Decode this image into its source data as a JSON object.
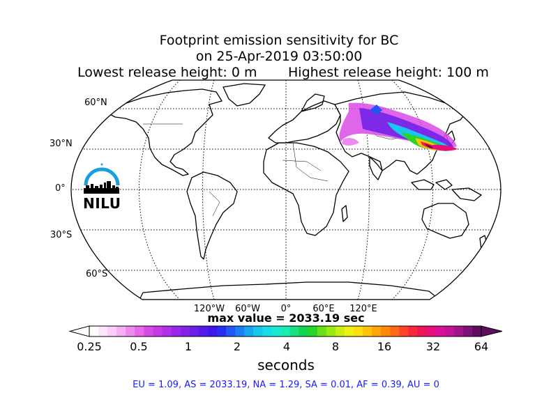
{
  "title": {
    "line1": "Footprint emission sensitivity for BC",
    "line2": "on 25-Apr-2019 03:50:00",
    "left": "Lowest release height: 0 m",
    "right": "Highest release height: 100 m"
  },
  "lat_labels": [
    "60°N",
    "30°N",
    "0°",
    "30°S",
    "60°S"
  ],
  "lon_labels": [
    "120°W",
    "60°W",
    "0°",
    "60°E",
    "120°E"
  ],
  "max_value": "max value = 2033.19 sec",
  "colorbar": {
    "ticks": [
      "0.25",
      "0.5",
      "1",
      "2",
      "4",
      "8",
      "16",
      "32",
      "64"
    ],
    "label": "seconds",
    "colors": [
      "#ffffff",
      "#fde6fb",
      "#fbcdf8",
      "#f6aff4",
      "#ef8aef",
      "#e768ea",
      "#d94be6",
      "#c83ae6",
      "#b12fe6",
      "#9a28e6",
      "#8422e6",
      "#6d1ee6",
      "#5419e8",
      "#3c16ec",
      "#2a2ef0",
      "#1f58f2",
      "#1a80f2",
      "#18a6f0",
      "#18c6ee",
      "#1adce8",
      "#1ae8d2",
      "#1aebb0",
      "#16e080",
      "#12d450",
      "#2ad428",
      "#6ae01a",
      "#9aea16",
      "#c8f014",
      "#f0f014",
      "#ffe00e",
      "#ffc40a",
      "#ffa40a",
      "#ff8a0a",
      "#ff6a12",
      "#ff4428",
      "#f8283c",
      "#ee1458",
      "#e6107a",
      "#d8109a",
      "#c21298",
      "#a01488",
      "#7e1278",
      "#600c60"
    ]
  },
  "stats": "EU = 1.09,  AS = 2033.19,  NA = 1.29,  SA = 0.01,  AF = 0.39,  AU = 0",
  "logo": {
    "text": "NILU",
    "arc_color": "#1a9ee0"
  }
}
